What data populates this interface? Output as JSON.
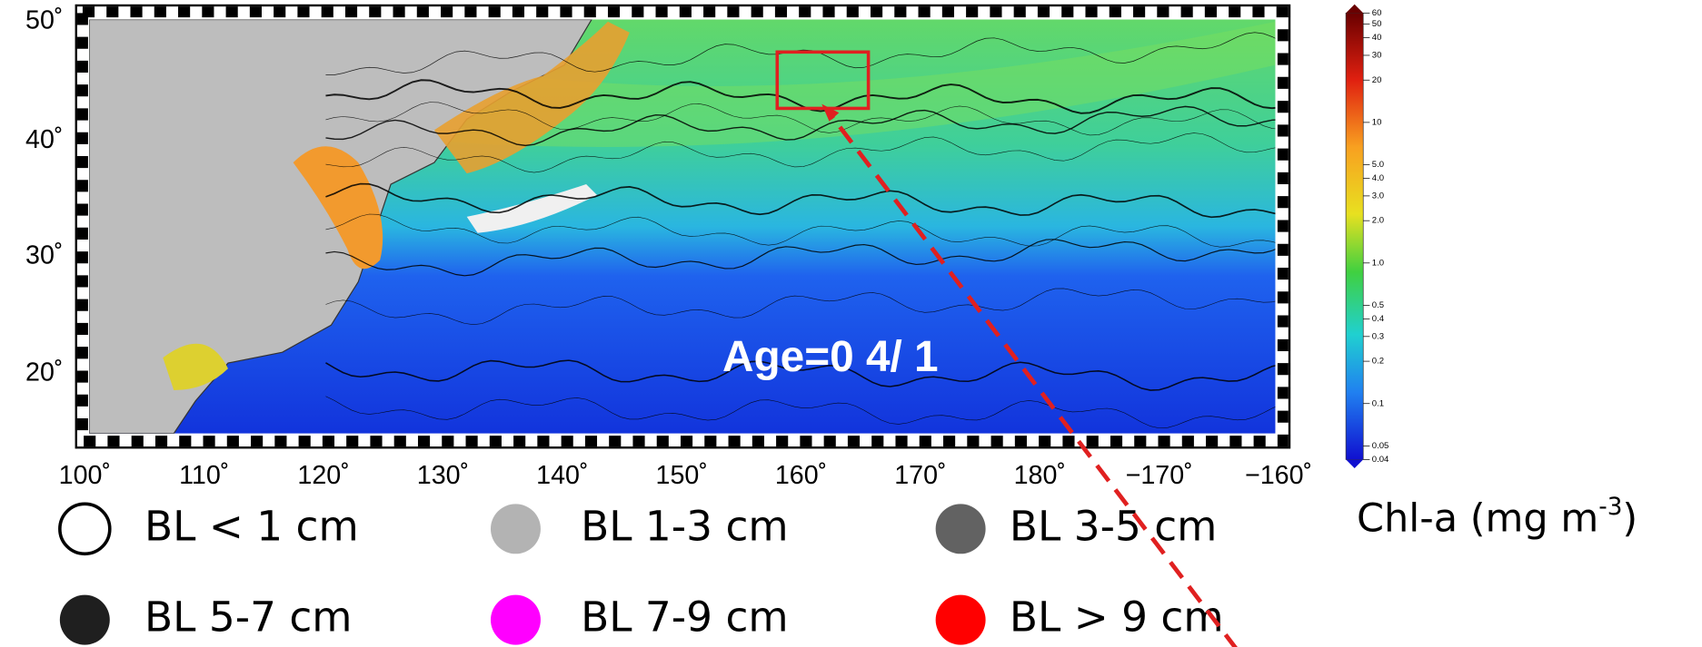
{
  "map": {
    "lat_labels": [
      "50˚",
      "40˚",
      "30˚",
      "20˚"
    ],
    "lon_labels": [
      "100˚",
      "110˚",
      "120˚",
      "130˚",
      "140˚",
      "150˚",
      "160˚",
      "170˚",
      "180˚",
      "−170˚",
      "−160˚"
    ],
    "annotation": "Age=0   4/ 1"
  },
  "colorbar": {
    "ticks": [
      "60",
      "50",
      "40",
      "30",
      "20",
      "10",
      "5.0",
      "4.0",
      "3.0",
      "2.0",
      "1.0",
      "0.5",
      "0.4",
      "0.3",
      "0.2",
      "0.1",
      "0.05",
      "0.04"
    ],
    "title": "Chl-a (mg m",
    "title_sup": "-3",
    "title_end": ")"
  },
  "legend": [
    {
      "label": "BL < 1 cm",
      "color": "#ffffff"
    },
    {
      "label": "BL  1-3 cm",
      "color": "#b3b3b3"
    },
    {
      "label": "BL  3-5 cm",
      "color": "#626262"
    },
    {
      "label": "BL  5-7 cm",
      "color": "#1f1f1f"
    },
    {
      "label": "BL  7-9 cm",
      "color": "#ff00ff"
    },
    {
      "label": "BL > 9 cm",
      "color": "#ff0000"
    }
  ]
}
